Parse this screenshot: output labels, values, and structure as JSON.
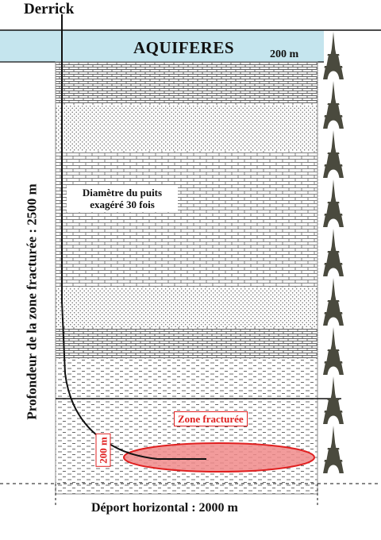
{
  "labels": {
    "derrick": "Derrick",
    "aquifer": "AQUIFERES",
    "aquifer_depth": "200 m",
    "well_diameter_note": "Diamètre du puits exagéré 30 fois",
    "fractured_depth": "Profondeur de la zone fracturée : 2500 m",
    "fractured_zone": "Zone fracturée",
    "fractured_zone_thickness": "200 m",
    "horizontal_offset": "Déport horizontal : 2000 m"
  },
  "colors": {
    "aquifer_band": "#c5e5ee",
    "fracture_zone": "#e02020",
    "fracture_fill": "#f08a8a",
    "tower": "#4a4a3e",
    "well": "#111111"
  },
  "layers": [
    {
      "pattern": "brick-dense"
    },
    {
      "pattern": "dots"
    },
    {
      "pattern": "brick"
    },
    {
      "pattern": "brick"
    },
    {
      "pattern": "dots"
    },
    {
      "pattern": "brick-dense"
    },
    {
      "pattern": "dash"
    }
  ],
  "scale_icons": {
    "icon": "eiffel-tower-icon",
    "count": 9
  }
}
